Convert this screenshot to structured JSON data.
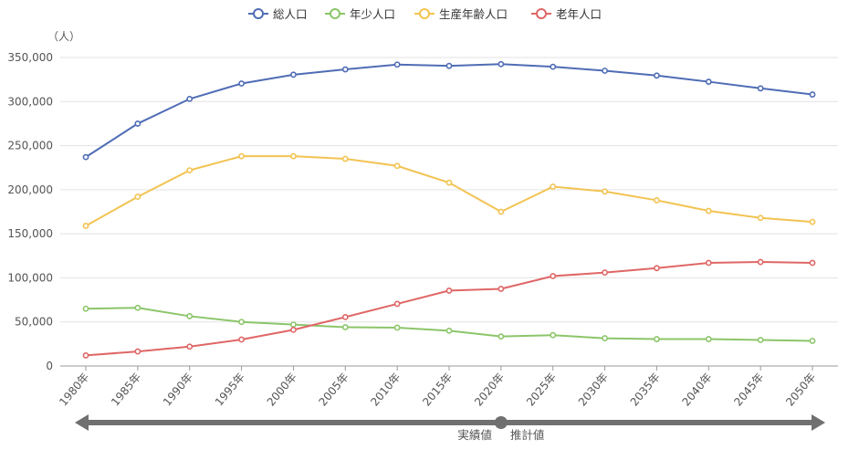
{
  "chart_data": {
    "type": "line",
    "y_unit_label": "（人）",
    "categories": [
      "1980年",
      "1985年",
      "1990年",
      "1995年",
      "2000年",
      "2005年",
      "2010年",
      "2015年",
      "2020年",
      "2025年",
      "2030年",
      "2035年",
      "2040年",
      "2045年",
      "2050年"
    ],
    "ylim": [
      0,
      350000
    ],
    "yticks": [
      0,
      50000,
      100000,
      150000,
      200000,
      250000,
      300000,
      350000
    ],
    "ytick_labels": [
      "0",
      "50,000",
      "100,000",
      "150,000",
      "200,000",
      "250,000",
      "300,000",
      "350,000"
    ],
    "grid": true,
    "legend_position": "top-center",
    "series": [
      {
        "name": "総人口",
        "color": "#4f6cb5",
        "values": [
          237000,
          275000,
          303000,
          320500,
          330500,
          336500,
          342000,
          340500,
          342500,
          339500,
          335000,
          329500,
          322500,
          315000,
          308000
        ]
      },
      {
        "name": "年少人口",
        "color": "#8cc56a",
        "values": [
          65000,
          66000,
          56500,
          50000,
          47000,
          44000,
          43500,
          40000,
          33500,
          35000,
          31500,
          30500,
          30500,
          29500,
          28500
        ]
      },
      {
        "name": "生産年齢人口",
        "color": "#f2c352",
        "values": [
          159000,
          192000,
          222000,
          238000,
          238000,
          235000,
          227000,
          208000,
          175000,
          203500,
          198000,
          188000,
          176000,
          168000,
          163500
        ]
      },
      {
        "name": "老年人口",
        "color": "#e06666",
        "values": [
          12000,
          16500,
          22000,
          30000,
          41000,
          55500,
          70500,
          85500,
          87500,
          102000,
          106000,
          111000,
          117000,
          118000,
          117000
        ]
      }
    ]
  },
  "timeline": {
    "actual_label": "実績値",
    "estimate_label": "推計値",
    "divider_category_index": 8,
    "color": "#707070"
  }
}
